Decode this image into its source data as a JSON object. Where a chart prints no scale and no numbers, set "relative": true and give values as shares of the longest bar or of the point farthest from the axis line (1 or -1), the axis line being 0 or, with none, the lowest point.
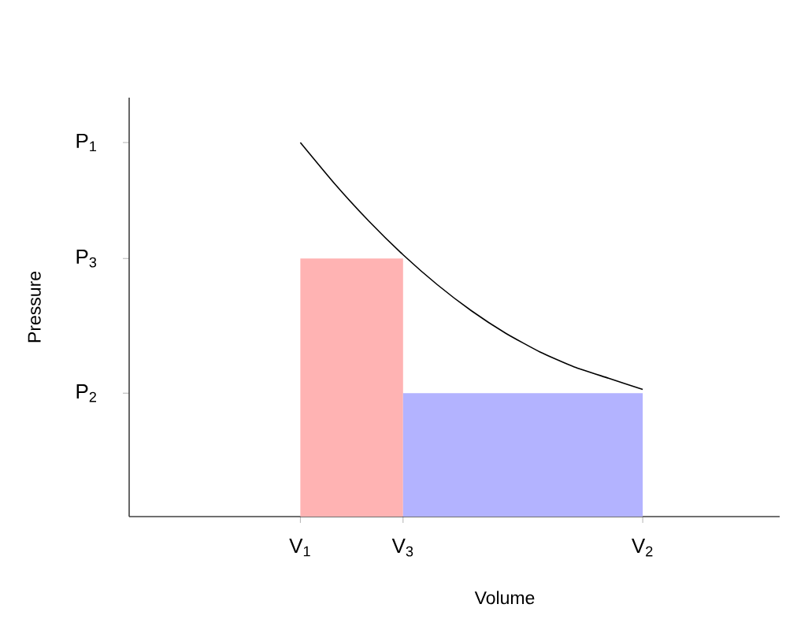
{
  "chart_data": {
    "type": "line",
    "relative": true,
    "xlabel": "Volume",
    "ylabel": "Pressure",
    "categories": [
      null,
      null,
      null,
      null,
      null,
      "V$_{1}$",
      null,
      null,
      "V$_{3}$",
      null,
      null,
      null,
      null,
      null,
      null,
      "V$_{2}$",
      null,
      null,
      null,
      null
    ],
    "annotations": [
      "P$_{2}$",
      "P$_{3}$",
      "P$_{1}$"
    ],
    "series": [
      {
        "type": "area",
        "color": "#ffb3b3",
        "values": [
          null,
          null,
          null,
          null,
          null,
          0.69,
          0.69,
          0.69,
          0.69,
          null,
          null,
          null,
          null,
          null,
          null,
          null,
          null,
          null,
          null,
          null
        ]
      },
      {
        "type": "area",
        "color": "#b3b3ff",
        "values": [
          null,
          null,
          null,
          null,
          null,
          null,
          null,
          null,
          0.33,
          0.33,
          0.33,
          0.33,
          0.33,
          0.33,
          0.33,
          0.33,
          null,
          null,
          null,
          null
        ]
      },
      {
        "color": "#000000",
        "values": [
          null,
          null,
          null,
          null,
          null,
          1.0,
          0.89,
          0.79,
          0.7,
          0.62,
          0.55,
          0.49,
          0.44,
          0.4,
          0.37,
          0.34,
          null,
          null,
          null,
          null
        ]
      }
    ]
  }
}
